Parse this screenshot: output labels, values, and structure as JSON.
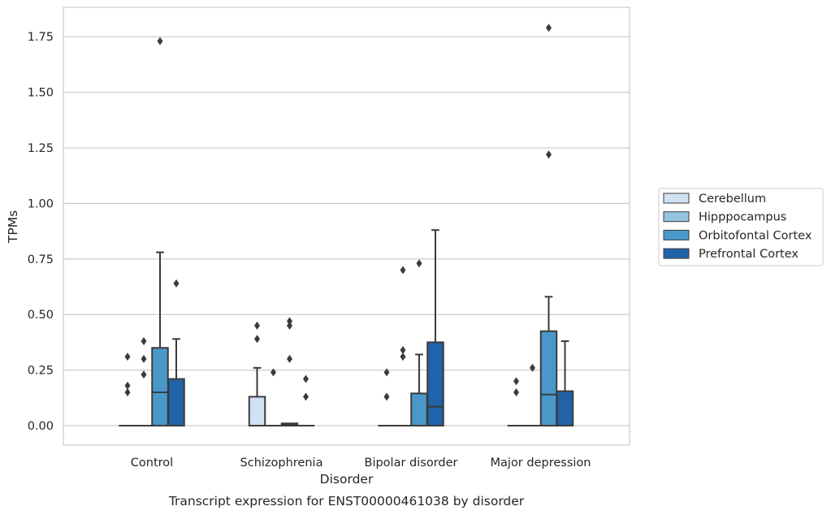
{
  "chart_data": {
    "type": "box",
    "title": "",
    "caption": "Transcript expression for ENST00000461038 by disorder",
    "xlabel": "Disorder",
    "ylabel": "TPMs",
    "ylim": [
      -0.085,
      1.88
    ],
    "yticks": [
      0.0,
      0.25,
      0.5,
      0.75,
      1.0,
      1.25,
      1.5,
      1.75
    ],
    "ytick_labels": [
      "0.00",
      "0.25",
      "0.50",
      "0.75",
      "1.00",
      "1.25",
      "1.50",
      "1.75"
    ],
    "categories": [
      "Control",
      "Schizophrenia",
      "Bipolar disorder",
      "Major depression"
    ],
    "grid": true,
    "legend": {
      "position": "right",
      "entries": [
        "Cerebellum",
        "Hipppocampus",
        "Orbitofontal Cortex",
        "Prefrontal Cortex"
      ]
    },
    "colors": {
      "Cerebellum": "#d0e1f2",
      "Hipppocampus": "#94c4df",
      "Orbitofontal Cortex": "#4a98c9",
      "Prefrontal Cortex": "#2163a8",
      "line": "#3b3b3b",
      "grid": "#cccccc"
    },
    "series": [
      {
        "name": "Cerebellum",
        "boxes": [
          {
            "q1": 0,
            "median": 0,
            "q3": 0,
            "whisker_low": 0,
            "whisker_high": 0,
            "outliers": [
              0.15,
              0.18,
              0.31
            ]
          },
          {
            "q1": 0,
            "median": 0,
            "q3": 0.13,
            "whisker_low": 0,
            "whisker_high": 0.26,
            "outliers": [
              0.39,
              0.45
            ]
          },
          {
            "q1": 0,
            "median": 0,
            "q3": 0,
            "whisker_low": 0,
            "whisker_high": 0,
            "outliers": [
              0.13,
              0.24
            ]
          },
          {
            "q1": 0,
            "median": 0,
            "q3": 0,
            "whisker_low": 0,
            "whisker_high": 0,
            "outliers": [
              0.15,
              0.2
            ]
          }
        ]
      },
      {
        "name": "Hipppocampus",
        "boxes": [
          {
            "q1": 0,
            "median": 0,
            "q3": 0,
            "whisker_low": 0,
            "whisker_high": 0,
            "outliers": [
              0.23,
              0.3,
              0.38
            ]
          },
          {
            "q1": 0,
            "median": 0,
            "q3": 0,
            "whisker_low": 0,
            "whisker_high": 0,
            "outliers": [
              0.24
            ]
          },
          {
            "q1": 0,
            "median": 0,
            "q3": 0,
            "whisker_low": 0,
            "whisker_high": 0,
            "outliers": [
              0.31,
              0.34,
              0.7
            ]
          },
          {
            "q1": 0,
            "median": 0,
            "q3": 0,
            "whisker_low": 0,
            "whisker_high": 0,
            "outliers": [
              0.26
            ]
          }
        ]
      },
      {
        "name": "Orbitofontal Cortex",
        "boxes": [
          {
            "q1": 0,
            "median": 0.15,
            "q3": 0.35,
            "whisker_low": 0,
            "whisker_high": 0.78,
            "outliers": [
              1.73
            ]
          },
          {
            "q1": 0,
            "median": 0.005,
            "q3": 0.01,
            "whisker_low": 0,
            "whisker_high": 0.01,
            "outliers": [
              0.3,
              0.45,
              0.47
            ]
          },
          {
            "q1": 0,
            "median": 0,
            "q3": 0.145,
            "whisker_low": 0,
            "whisker_high": 0.32,
            "outliers": [
              0.73
            ]
          },
          {
            "q1": 0,
            "median": 0.14,
            "q3": 0.425,
            "whisker_low": 0,
            "whisker_high": 0.58,
            "outliers": [
              1.22,
              1.79
            ]
          }
        ]
      },
      {
        "name": "Prefrontal Cortex",
        "boxes": [
          {
            "q1": 0,
            "median": 0,
            "q3": 0.21,
            "whisker_low": 0,
            "whisker_high": 0.39,
            "outliers": [
              0.64
            ]
          },
          {
            "q1": 0,
            "median": 0,
            "q3": 0,
            "whisker_low": 0,
            "whisker_high": 0,
            "outliers": [
              0.13,
              0.21
            ]
          },
          {
            "q1": 0,
            "median": 0.085,
            "q3": 0.375,
            "whisker_low": 0,
            "whisker_high": 0.88,
            "outliers": []
          },
          {
            "q1": 0,
            "median": 0,
            "q3": 0.155,
            "whisker_low": 0,
            "whisker_high": 0.38,
            "outliers": []
          }
        ]
      }
    ]
  }
}
